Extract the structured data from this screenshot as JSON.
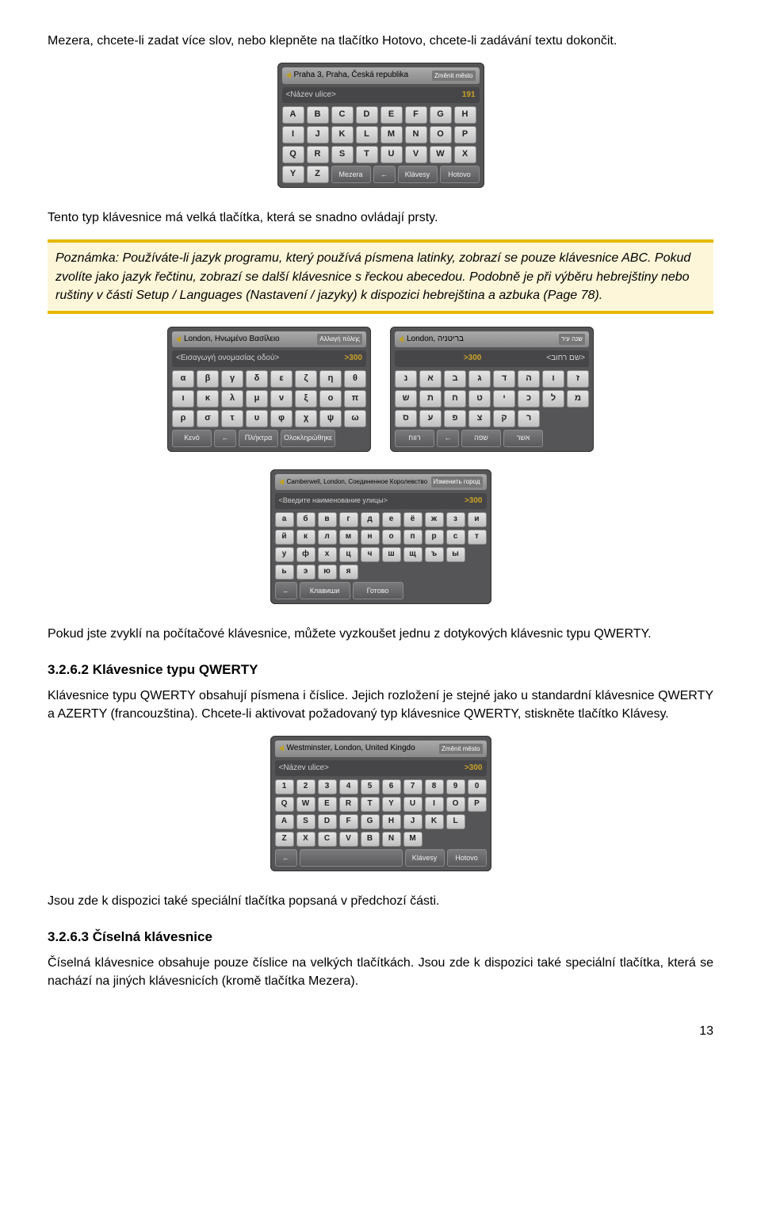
{
  "intro": {
    "p1": "Mezera, chcete-li zadat více slov, nebo klepněte na tlačítko Hotovo, chcete-li zadávání textu dokončit."
  },
  "abc_kbd": {
    "topbar_text": "Praha 3, Praha, Česká republika",
    "topbar_chip": "Změnit město",
    "input_placeholder": "<Název ulice>",
    "input_count": "191",
    "rows": [
      [
        "A",
        "B",
        "C",
        "D",
        "E",
        "F",
        "G",
        "H"
      ],
      [
        "I",
        "J",
        "K",
        "L",
        "M",
        "N",
        "O",
        "P"
      ],
      [
        "Q",
        "R",
        "S",
        "T",
        "U",
        "V",
        "W",
        "X"
      ]
    ],
    "bottom": {
      "k1": "Y",
      "k2": "Z",
      "mezera": "Mezera",
      "back": "←",
      "klavesy": "Klávesy",
      "hotovo": "Hotovo"
    }
  },
  "mid_text": {
    "p1": "Tento typ klávesnice má velká tlačítka, která se snadno ovládají prsty."
  },
  "note": {
    "text": "Poznámka: Používáte-li jazyk programu, který používá písmena latinky, zobrazí se pouze klávesnice ABC. Pokud zvolíte jako jazyk řečtinu, zobrazí se další klávesnice s řeckou abecedou. Podobně je při výběru hebrejštiny nebo ruštiny v části Setup / Languages (Nastavení / jazyky) k dispozici hebrejština a azbuka (Page 78)."
  },
  "greek_kbd": {
    "topbar_text": "London, Ηνωμένο Βασίλειο",
    "topbar_chip": "Αλλαγή πόλης",
    "input_placeholder": "<Εισαγωγή ονομασίας οδού>",
    "input_count": ">300",
    "rows": [
      [
        "α",
        "β",
        "γ",
        "δ",
        "ε",
        "ζ",
        "η",
        "θ"
      ],
      [
        "ι",
        "κ",
        "λ",
        "μ",
        "ν",
        "ξ",
        "ο",
        "π"
      ],
      [
        "ρ",
        "σ",
        "τ",
        "υ",
        "φ",
        "χ",
        "ψ",
        "ω"
      ]
    ],
    "bottom": {
      "keno": "Κενό",
      "back": "←",
      "pliktra": "Πλήκτρα",
      "done": "Ολοκληρώθηκε"
    }
  },
  "hebrew_kbd": {
    "topbar_text": "London, בריטניה",
    "topbar_chip": "שנה עיר",
    "input_placeholder": "<שם רחוב>",
    "input_count": ">300",
    "rows": [
      [
        "נ",
        "א",
        "ב",
        "ג",
        "ד",
        "ה",
        "ו",
        "ז"
      ],
      [
        "ש",
        "ת",
        "ח",
        "ט",
        "י",
        "כ",
        "ל",
        "מ"
      ],
      [
        "ס",
        "ע",
        "פ",
        "צ",
        "ק",
        "ר"
      ]
    ],
    "bottom": {
      "space": "רווח",
      "back": "←",
      "keys": "שפה",
      "done": "אשר"
    }
  },
  "russian_kbd": {
    "topbar_text": "Camberwell, London, Соединенное Королевство",
    "topbar_chip": "Изменить город",
    "input_placeholder": "<Введите наименование улицы>",
    "input_count": ">300",
    "rows": [
      [
        "а",
        "б",
        "в",
        "г",
        "д",
        "е",
        "ё",
        "ж",
        "з",
        "и"
      ],
      [
        "й",
        "к",
        "л",
        "м",
        "н",
        "о",
        "п",
        "р",
        "с",
        "т"
      ],
      [
        "у",
        "ф",
        "х",
        "ц",
        "ч",
        "ш",
        "щ",
        "ъ",
        "ы"
      ],
      [
        "ь",
        "э",
        "ю",
        "я"
      ]
    ],
    "bottom": {
      "back": "←",
      "keys": "Клавиши",
      "done": "Готово"
    }
  },
  "after_kbds": {
    "p1": "Pokud jste zvyklí na počítačové klávesnice, můžete vyzkoušet jednu z dotykových klávesnic typu QWERTY."
  },
  "sec_qwerty": {
    "heading": "3.2.6.2  Klávesnice typu QWERTY",
    "p1": "Klávesnice typu QWERTY obsahují písmena i číslice. Jejich rozložení je stejné jako u standardní klávesnice QWERTY a AZERTY (francouzština). Chcete-li aktivovat požadovaný typ klávesnice QWERTY, stiskněte tlačítko Klávesy."
  },
  "qwerty_kbd": {
    "topbar_text": "Westminster, London, United Kingdo",
    "topbar_chip": "Změnit město",
    "input_placeholder": "<Název ulice>",
    "input_count": ">300",
    "rows": [
      [
        "1",
        "2",
        "3",
        "4",
        "5",
        "6",
        "7",
        "8",
        "9",
        "0"
      ],
      [
        "Q",
        "W",
        "E",
        "R",
        "T",
        "Y",
        "U",
        "I",
        "O",
        "P"
      ],
      [
        "A",
        "S",
        "D",
        "F",
        "G",
        "H",
        "J",
        "K",
        "L"
      ],
      [
        "Z",
        "X",
        "C",
        "V",
        "B",
        "N",
        "M"
      ]
    ],
    "bottom": {
      "back": "←",
      "klavesy": "Klávesy",
      "hotovo": "Hotovo"
    }
  },
  "after_qwerty": {
    "p1": "Jsou zde k dispozici také speciální tlačítka popsaná v předchozí části."
  },
  "sec_num": {
    "heading": "3.2.6.3  Číselná klávesnice",
    "p1": "Číselná klávesnice obsahuje pouze číslice na velkých tlačítkách. Jsou zde k dispozici také speciální tlačítka, která se nachází na jiných klávesnicích (kromě tlačítka Mezera)."
  },
  "page_number": "13",
  "style": {
    "note_bg": "#fdf6d9",
    "note_border": "#e6b800",
    "kbd_bg": "#555558",
    "key_light_grad_top": "#e6e6e6",
    "key_light_grad_bot": "#bfbfbf",
    "key_dark_grad_top": "#7a7a7d",
    "key_dark_grad_bot": "#5a5a5d"
  }
}
